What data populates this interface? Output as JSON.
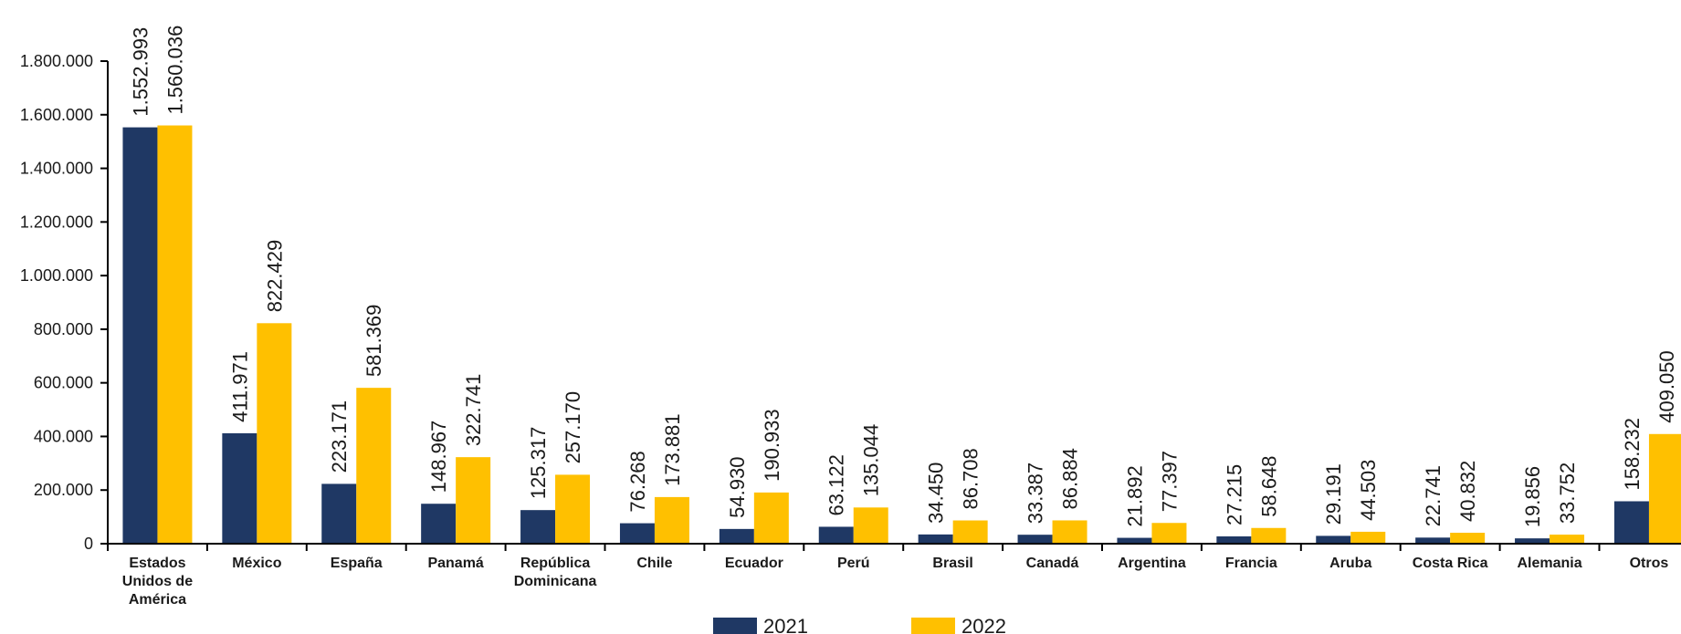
{
  "chart_data": {
    "type": "bar",
    "categories": [
      [
        "Estados",
        "Unidos de",
        "América"
      ],
      [
        "México"
      ],
      [
        "España"
      ],
      [
        "Panamá"
      ],
      [
        "República",
        "Dominicana"
      ],
      [
        "Chile"
      ],
      [
        "Ecuador"
      ],
      [
        "Perú"
      ],
      [
        "Brasil"
      ],
      [
        "Canadá"
      ],
      [
        "Argentina"
      ],
      [
        "Francia"
      ],
      [
        "Aruba"
      ],
      [
        "Costa Rica"
      ],
      [
        "Alemania"
      ],
      [
        "Otros"
      ]
    ],
    "series": [
      {
        "name": "2021",
        "color": "#1f3864",
        "values": [
          1552993,
          411971,
          223171,
          148967,
          125317,
          76268,
          54930,
          63122,
          34450,
          33387,
          21892,
          27215,
          29191,
          22741,
          19856,
          158232
        ],
        "labels": [
          "1.552.993",
          "411.971",
          "223.171",
          "148.967",
          "125.317",
          "76.268",
          "54.930",
          "63.122",
          "34.450",
          "33.387",
          "21.892",
          "27.215",
          "29.191",
          "22.741",
          "19.856",
          "158.232"
        ]
      },
      {
        "name": "2022",
        "color": "#ffc000",
        "values": [
          1560036,
          822429,
          581369,
          322741,
          257170,
          173881,
          190933,
          135044,
          86708,
          86884,
          77397,
          58648,
          44503,
          40832,
          33752,
          409050
        ],
        "labels": [
          "1.560.036",
          "822.429",
          "581.369",
          "322.741",
          "257.170",
          "173.881",
          "190.933",
          "135.044",
          "86.708",
          "86.884",
          "77.397",
          "58.648",
          "44.503",
          "40.832",
          "33.752",
          "409.050"
        ]
      }
    ],
    "ylim": [
      0,
      1800000
    ],
    "yticks": [
      0,
      200000,
      400000,
      600000,
      800000,
      1000000,
      1200000,
      1400000,
      1600000,
      1800000
    ],
    "ytick_labels": [
      "0",
      "200.000",
      "400.000",
      "600.000",
      "800.000",
      "1.000.000",
      "1.200.000",
      "1.400.000",
      "1.600.000",
      "1.800.000"
    ],
    "grid": false,
    "legend_position": "bottom-center",
    "title": "",
    "xlabel": "",
    "ylabel": ""
  }
}
